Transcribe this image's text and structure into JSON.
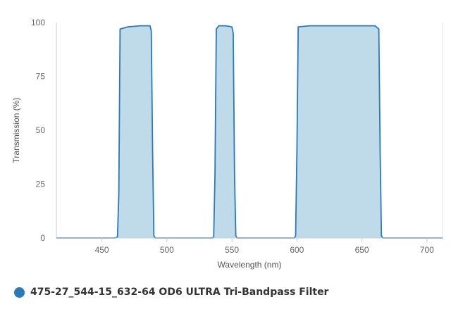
{
  "chart_data": {
    "type": "area",
    "title": "",
    "xlabel": "Wavelength (nm)",
    "ylabel": "Transmission (%)",
    "xlim": [
      415,
      712
    ],
    "ylim": [
      0,
      100
    ],
    "x_ticks": [
      450,
      500,
      550,
      600,
      650,
      700
    ],
    "y_ticks": [
      0,
      25,
      50,
      75,
      100
    ],
    "grid": false,
    "legend_position": "bottom-left",
    "series": [
      {
        "name": "475-27_544-15_632-64 OD6 ULTRA Tri-Bandpass Filter",
        "color": "#2a7ab8",
        "fill_color": "#bfdbea",
        "x": [
          415,
          460,
          462,
          463,
          464,
          470,
          480,
          487,
          488,
          489,
          490,
          491,
          535,
          536,
          537,
          538,
          540,
          545,
          550,
          551,
          552,
          553,
          554,
          598,
          599,
          600,
          601,
          610,
          620,
          630,
          640,
          650,
          660,
          663,
          664,
          665,
          666,
          712
        ],
        "values": [
          0,
          0,
          0.5,
          20,
          97,
          98,
          98.5,
          98.5,
          96,
          40,
          1,
          0,
          0,
          0.5,
          30,
          97,
          98.5,
          98.5,
          98,
          95,
          30,
          1,
          0,
          0,
          1,
          40,
          98,
          98.5,
          98.5,
          98.5,
          98.5,
          98.5,
          98.5,
          97,
          40,
          1,
          0,
          0
        ]
      }
    ]
  }
}
